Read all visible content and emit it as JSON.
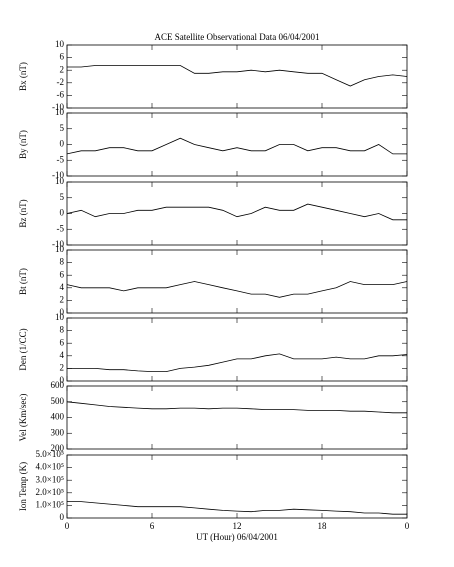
{
  "chart_data": [
    {
      "type": "line",
      "title": "ACE Satellite Observational Data   06/04/2001",
      "ylabel": "Bx (nT)",
      "color": "#000000",
      "x": [
        0,
        1,
        2,
        3,
        4,
        5,
        6,
        7,
        8,
        9,
        10,
        11,
        12,
        13,
        14,
        15,
        16,
        17,
        18,
        19,
        20,
        21,
        22,
        23,
        24
      ],
      "values": [
        3,
        3,
        3.5,
        3.5,
        3.5,
        3.5,
        3.5,
        3.5,
        3.5,
        1,
        1,
        1.5,
        1.5,
        2,
        1.5,
        2,
        1.5,
        1,
        1,
        -1,
        -3,
        -1,
        0,
        0.5,
        0
      ],
      "ylim": [
        -10,
        10
      ],
      "yticks": [
        10,
        6,
        2,
        -2,
        -6,
        -10
      ]
    },
    {
      "type": "line",
      "ylabel": "By (nT)",
      "color": "#000000",
      "x": [
        0,
        1,
        2,
        3,
        4,
        5,
        6,
        7,
        8,
        9,
        10,
        11,
        12,
        13,
        14,
        15,
        16,
        17,
        18,
        19,
        20,
        21,
        22,
        23,
        24
      ],
      "values": [
        -3,
        -2,
        -2,
        -1,
        -1,
        -2,
        -2,
        0,
        2,
        0,
        -1,
        -2,
        -1,
        -2,
        -2,
        0,
        0,
        -2,
        -1,
        -1,
        -2,
        -2,
        0,
        -3,
        -3
      ],
      "ylim": [
        -10,
        10
      ],
      "yticks": [
        10,
        5,
        0,
        -5,
        -10
      ]
    },
    {
      "type": "line",
      "ylabel": "Bz (nT)",
      "color": "#000000",
      "x": [
        0,
        1,
        2,
        3,
        4,
        5,
        6,
        7,
        8,
        9,
        10,
        11,
        12,
        13,
        14,
        15,
        16,
        17,
        18,
        19,
        20,
        21,
        22,
        23,
        24
      ],
      "values": [
        0,
        1,
        -1,
        0,
        0,
        1,
        1,
        2,
        2,
        2,
        2,
        1,
        -1,
        0,
        2,
        1,
        1,
        3,
        2,
        1,
        0,
        -1,
        0,
        -2,
        -2
      ],
      "ylim": [
        -10,
        10
      ],
      "yticks": [
        10,
        5,
        0,
        -5,
        -10
      ]
    },
    {
      "type": "line",
      "ylabel": "Bt (nT)",
      "color": "#000000",
      "x": [
        0,
        1,
        2,
        3,
        4,
        5,
        6,
        7,
        8,
        9,
        10,
        11,
        12,
        13,
        14,
        15,
        16,
        17,
        18,
        19,
        20,
        21,
        22,
        23,
        24
      ],
      "values": [
        4.5,
        4,
        4,
        4,
        3.5,
        4,
        4,
        4,
        4.5,
        5,
        4.5,
        4,
        3.5,
        3,
        3,
        2.5,
        3,
        3,
        3.5,
        4,
        5,
        4.5,
        4.5,
        4.5,
        5
      ],
      "ylim": [
        0,
        10
      ],
      "yticks": [
        10,
        8,
        6,
        4,
        2,
        0
      ]
    },
    {
      "type": "line",
      "ylabel": "Den (1/CC)",
      "color": "#000000",
      "x": [
        0,
        1,
        2,
        3,
        4,
        5,
        6,
        7,
        8,
        9,
        10,
        11,
        12,
        13,
        14,
        15,
        16,
        17,
        18,
        19,
        20,
        21,
        22,
        23,
        24
      ],
      "values": [
        2,
        2,
        2,
        1.8,
        1.8,
        1.6,
        1.5,
        1.5,
        2,
        2.2,
        2.5,
        3,
        3.5,
        3.5,
        4,
        4.3,
        3.5,
        3.5,
        3.5,
        3.8,
        3.5,
        3.5,
        4,
        4,
        4.2
      ],
      "ylim": [
        0,
        10
      ],
      "yticks": [
        10,
        8,
        6,
        4,
        2,
        0
      ]
    },
    {
      "type": "line",
      "ylabel": "Vel (Km/sec)",
      "color": "#000000",
      "x": [
        0,
        1,
        2,
        3,
        4,
        5,
        6,
        7,
        8,
        9,
        10,
        11,
        12,
        13,
        14,
        15,
        16,
        17,
        18,
        19,
        20,
        21,
        22,
        23,
        24
      ],
      "values": [
        500,
        490,
        480,
        470,
        465,
        460,
        455,
        455,
        460,
        460,
        455,
        460,
        460,
        455,
        450,
        450,
        450,
        445,
        445,
        445,
        440,
        440,
        435,
        430,
        430
      ],
      "ylim": [
        200,
        600
      ],
      "yticks": [
        600,
        500,
        400,
        300,
        200
      ]
    },
    {
      "type": "line",
      "ylabel": "Ion Temp (K)",
      "xlabel": "UT (Hour)  06/04/2001",
      "color": "#000000",
      "x": [
        0,
        1,
        2,
        3,
        4,
        5,
        6,
        7,
        8,
        9,
        10,
        11,
        12,
        13,
        14,
        15,
        16,
        17,
        18,
        19,
        20,
        21,
        22,
        23,
        24
      ],
      "values": [
        130000,
        130000,
        120000,
        110000,
        100000,
        90000,
        90000,
        90000,
        90000,
        80000,
        70000,
        60000,
        55000,
        50000,
        60000,
        60000,
        70000,
        65000,
        60000,
        55000,
        50000,
        40000,
        40000,
        30000,
        30000
      ],
      "ylim": [
        0,
        500000
      ],
      "yticks": [
        {
          "value": 500000,
          "label": "5.0×10⁵"
        },
        {
          "value": 400000,
          "label": "4.0×10⁵"
        },
        {
          "value": 300000,
          "label": "3.0×10⁵"
        },
        {
          "value": 200000,
          "label": "2.0×10⁵"
        },
        {
          "value": 100000,
          "label": "1.0×10⁵"
        },
        0
      ],
      "xlim": [
        0,
        24
      ],
      "xticks": [
        0,
        6,
        12,
        18,
        {
          "value": 24,
          "label": "0"
        }
      ]
    }
  ]
}
